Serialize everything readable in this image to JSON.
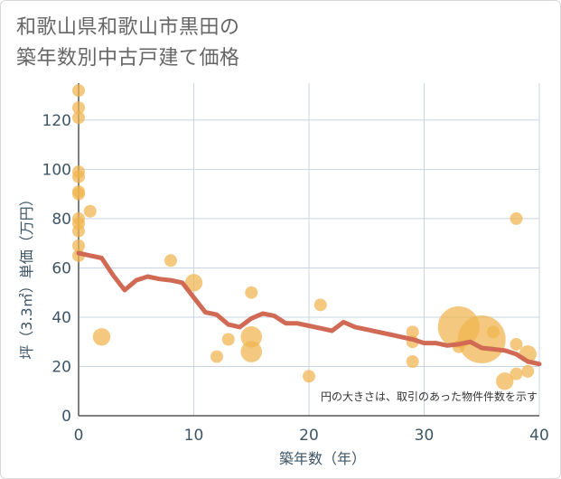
{
  "title": {
    "line1": "和歌山県和歌山市黒田の",
    "line2": "築年数別中古戸建て価格"
  },
  "chart_data": {
    "type": "scatter",
    "xlabel": "築年数（年）",
    "ylabel": "坪（3.3㎡）単価（万円）",
    "xlim": [
      0,
      40
    ],
    "ylim": [
      0,
      135
    ],
    "xticks": [
      0,
      10,
      20,
      30,
      40
    ],
    "yticks": [
      0,
      20,
      40,
      60,
      80,
      100,
      120
    ],
    "note": "円の大きさは、取引のあった物件件数を示す",
    "colors": {
      "bubble": "#f0b44e",
      "line": "#d06a55",
      "grid": "#c9d4e2"
    },
    "bubbles": [
      {
        "x": 0,
        "y": 132,
        "size": 1
      },
      {
        "x": 0,
        "y": 125,
        "size": 1
      },
      {
        "x": 0,
        "y": 121,
        "size": 1
      },
      {
        "x": 0,
        "y": 99,
        "size": 1
      },
      {
        "x": 0,
        "y": 97,
        "size": 1
      },
      {
        "x": 0,
        "y": 91,
        "size": 1
      },
      {
        "x": 0,
        "y": 90,
        "size": 1
      },
      {
        "x": 0,
        "y": 80,
        "size": 1
      },
      {
        "x": 0,
        "y": 78,
        "size": 1
      },
      {
        "x": 0,
        "y": 75,
        "size": 1
      },
      {
        "x": 0,
        "y": 69,
        "size": 1
      },
      {
        "x": 0,
        "y": 65,
        "size": 1
      },
      {
        "x": 1,
        "y": 83,
        "size": 1
      },
      {
        "x": 2,
        "y": 32,
        "size": 2
      },
      {
        "x": 8,
        "y": 63,
        "size": 1
      },
      {
        "x": 10,
        "y": 54,
        "size": 2
      },
      {
        "x": 12,
        "y": 24,
        "size": 1
      },
      {
        "x": 13,
        "y": 31,
        "size": 1
      },
      {
        "x": 15,
        "y": 50,
        "size": 1
      },
      {
        "x": 15,
        "y": 32,
        "size": 3
      },
      {
        "x": 15,
        "y": 26,
        "size": 3
      },
      {
        "x": 20,
        "y": 16,
        "size": 1
      },
      {
        "x": 21,
        "y": 45,
        "size": 1
      },
      {
        "x": 29,
        "y": 34,
        "size": 1
      },
      {
        "x": 29,
        "y": 30,
        "size": 1
      },
      {
        "x": 29,
        "y": 22,
        "size": 1
      },
      {
        "x": 33,
        "y": 36,
        "size": 12
      },
      {
        "x": 33,
        "y": 28,
        "size": 1
      },
      {
        "x": 35,
        "y": 31,
        "size": 16
      },
      {
        "x": 36,
        "y": 34,
        "size": 1
      },
      {
        "x": 37,
        "y": 14,
        "size": 2
      },
      {
        "x": 38,
        "y": 80,
        "size": 1
      },
      {
        "x": 38,
        "y": 29,
        "size": 1
      },
      {
        "x": 38,
        "y": 17,
        "size": 1
      },
      {
        "x": 39,
        "y": 25,
        "size": 2
      },
      {
        "x": 39,
        "y": 18,
        "size": 1
      }
    ],
    "trend": {
      "x": [
        0,
        1,
        2,
        3,
        4,
        5,
        6,
        7,
        8,
        9,
        10,
        11,
        12,
        13,
        14,
        15,
        16,
        17,
        18,
        19,
        20,
        21,
        22,
        23,
        24,
        25,
        26,
        27,
        28,
        29,
        30,
        31,
        32,
        33,
        34,
        35,
        36,
        37,
        38,
        39,
        40
      ],
      "y": [
        66,
        65,
        64,
        57,
        51,
        55,
        56.5,
        55.5,
        55,
        54,
        48,
        42,
        41,
        37,
        36,
        39.5,
        41.5,
        40.5,
        37.5,
        37.5,
        36.5,
        35.5,
        34.5,
        38,
        36,
        35,
        34,
        33,
        32,
        31,
        29.5,
        29.5,
        28.5,
        29,
        30,
        27.5,
        27,
        26.5,
        25,
        22,
        21
      ]
    }
  }
}
